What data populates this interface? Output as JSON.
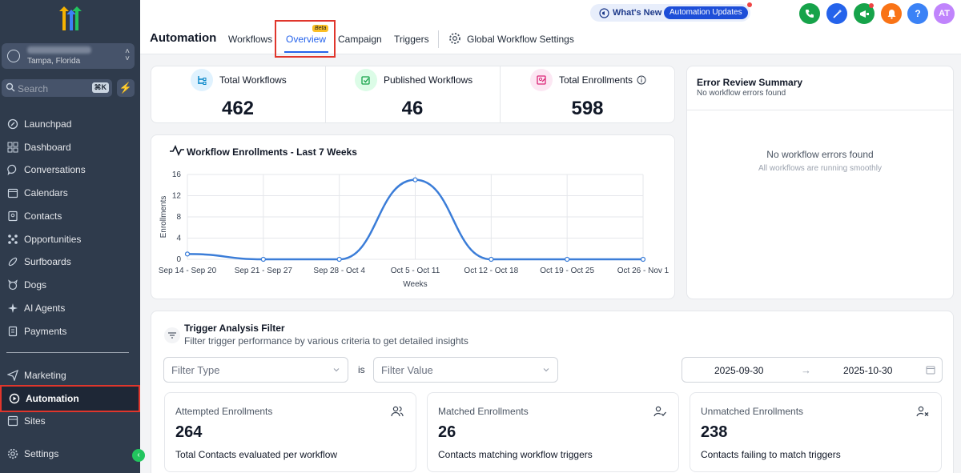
{
  "sidebar": {
    "account_location": "Tampa, Florida",
    "search_placeholder": "Search",
    "search_shortcut": "⌘K",
    "items": [
      {
        "label": "Launchpad",
        "icon": "rocket-icon"
      },
      {
        "label": "Dashboard",
        "icon": "dashboard-icon"
      },
      {
        "label": "Conversations",
        "icon": "chat-icon"
      },
      {
        "label": "Calendars",
        "icon": "calendar-icon"
      },
      {
        "label": "Contacts",
        "icon": "contacts-icon"
      },
      {
        "label": "Opportunities",
        "icon": "opportunities-icon"
      },
      {
        "label": "Surfboards",
        "icon": "surfboard-icon"
      },
      {
        "label": "Dogs",
        "icon": "dog-icon"
      },
      {
        "label": "AI Agents",
        "icon": "sparkle-icon"
      },
      {
        "label": "Payments",
        "icon": "payments-icon"
      }
    ],
    "bottom_items": [
      {
        "label": "Marketing",
        "icon": "send-icon"
      },
      {
        "label": "Automation",
        "icon": "automation-icon",
        "active": true
      },
      {
        "label": "Sites",
        "icon": "sites-icon"
      }
    ],
    "settings_label": "Settings"
  },
  "header": {
    "title": "Automation",
    "tabs": [
      {
        "label": "Workflows"
      },
      {
        "label": "Overview",
        "active": true,
        "badge": "Beta"
      },
      {
        "label": "Campaign"
      },
      {
        "label": "Triggers"
      }
    ],
    "global_settings": "Global Workflow Settings",
    "whats_new": "What's New",
    "updates_pill": "Automation Updates",
    "user_initials": "AT"
  },
  "stats": {
    "total_workflows": {
      "label": "Total Workflows",
      "value": "462"
    },
    "published_workflows": {
      "label": "Published Workflows",
      "value": "46"
    },
    "total_enrollments": {
      "label": "Total Enrollments",
      "value": "598"
    }
  },
  "chart_data": {
    "type": "line",
    "title": "Workflow Enrollments - Last 7 Weeks",
    "xlabel": "Weeks",
    "ylabel": "Enrollments",
    "categories": [
      "Sep 14 - Sep 20",
      "Sep 21 - Sep 27",
      "Sep 28 - Oct 4",
      "Oct 5 - Oct 11",
      "Oct 12 - Oct 18",
      "Oct 19 - Oct 25",
      "Oct 26 - Nov 1"
    ],
    "values": [
      1,
      0,
      0,
      15,
      0,
      0,
      0
    ],
    "yticks": [
      0,
      4,
      8,
      12,
      16
    ],
    "ylim": [
      0,
      16
    ],
    "grid": true,
    "color": "#3b7dd8"
  },
  "errors": {
    "title": "Error Review Summary",
    "subtitle": "No workflow errors found",
    "message": "No workflow errors found",
    "detail": "All workflows are running smoothly"
  },
  "trigger": {
    "title": "Trigger Analysis Filter",
    "subtitle": "Filter trigger performance by various criteria to get detailed insights",
    "filter_type_placeholder": "Filter Type",
    "is_label": "is",
    "filter_value_placeholder": "Filter Value",
    "date_start": "2025-09-30",
    "date_end": "2025-10-30",
    "metrics": [
      {
        "label": "Attempted Enrollments",
        "value": "264",
        "desc": "Total Contacts evaluated per workflow",
        "icon": "users-icon"
      },
      {
        "label": "Matched Enrollments",
        "value": "26",
        "desc": "Contacts matching workflow triggers",
        "icon": "user-check-icon"
      },
      {
        "label": "Unmatched Enrollments",
        "value": "238",
        "desc": "Contacts failing to match triggers",
        "icon": "user-x-icon"
      }
    ]
  }
}
